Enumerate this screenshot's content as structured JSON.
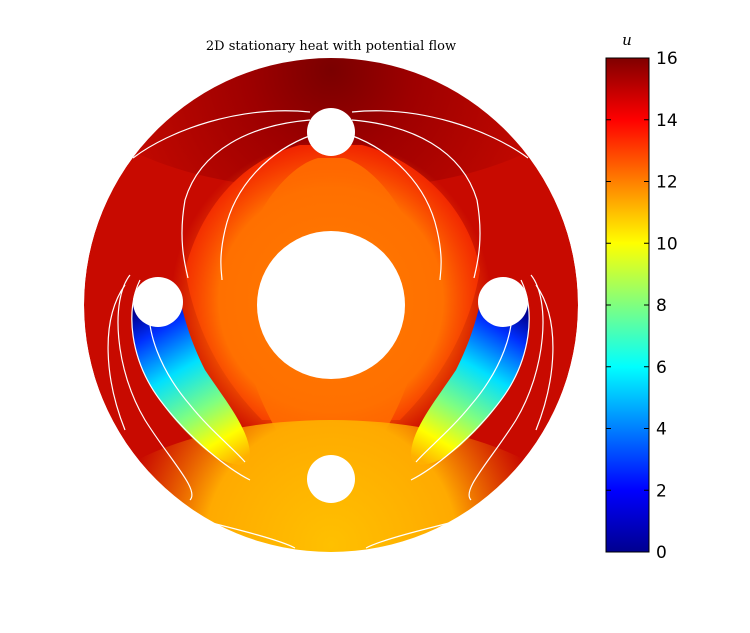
{
  "chart_data": {
    "type": "heatmap",
    "title": "2D stationary heat with potential flow",
    "colorbar": {
      "label": "u",
      "min": 0,
      "max": 16,
      "ticks": [
        "0",
        "2",
        "4",
        "6",
        "8",
        "10",
        "12",
        "14",
        "16"
      ],
      "colormap": "jet",
      "placement": "right"
    },
    "domain": "annulus with four small circular holes",
    "contour_lines": true,
    "contour_color": "#ffffff"
  }
}
